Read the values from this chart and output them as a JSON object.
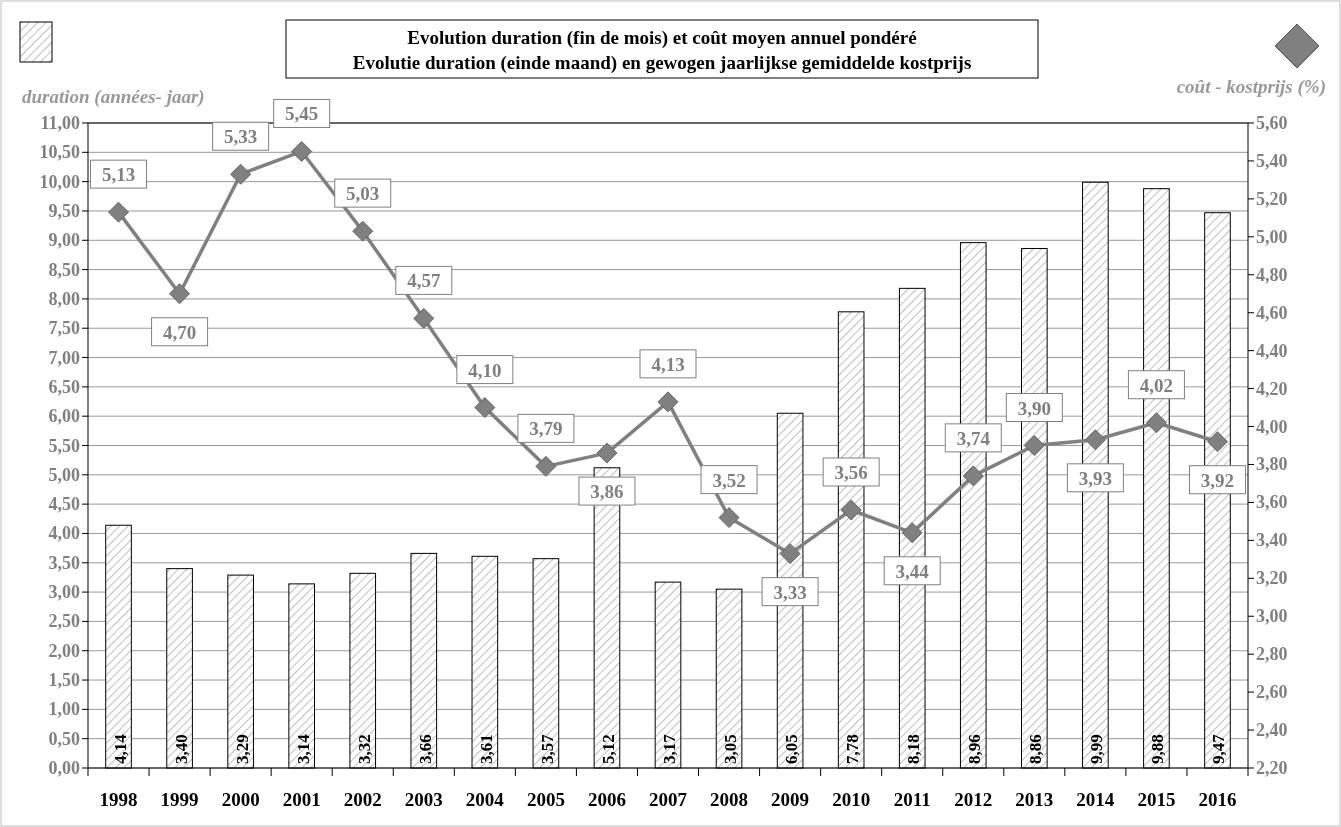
{
  "chart_data": {
    "type": "bar",
    "title": "Evolution duration (fin de mois) et coût moyen annuel pondéré\nEvolutie duration (einde maand) en gewogen jaarlijkse gemiddelde kostprijs",
    "ylabel": "duration (années- jaar)",
    "y2label": "coût - kostprijs (%)",
    "categories": [
      "1998",
      "1999",
      "2000",
      "2001",
      "2002",
      "2003",
      "2004",
      "2005",
      "2006",
      "2007",
      "2008",
      "2009",
      "2010",
      "2011",
      "2012",
      "2013",
      "2014",
      "2015",
      "2016"
    ],
    "series": [
      {
        "color": "#000000",
        "values": [
          4.14,
          3.4,
          3.29,
          3.14,
          3.32,
          3.66,
          3.61,
          3.57,
          5.12,
          3.17,
          3.05,
          6.05,
          7.78,
          8.18,
          8.96,
          8.86,
          9.99,
          9.88,
          9.47
        ],
        "value_labels": [
          "4,14",
          "3,40",
          "3,29",
          "3,14",
          "3,32",
          "3,66",
          "3,61",
          "3,57",
          "5,12",
          "3,17",
          "3,05",
          "6,05",
          "7,78",
          "8,18",
          "8,96",
          "8,86",
          "9,99",
          "9,88",
          "9,47"
        ]
      },
      {
        "type": "line",
        "axis": "y2",
        "color": "#808080",
        "marker": "diamond",
        "values": [
          5.13,
          4.7,
          5.33,
          5.45,
          5.03,
          4.57,
          4.1,
          3.79,
          3.86,
          4.13,
          3.52,
          3.33,
          3.56,
          3.44,
          3.74,
          3.9,
          3.93,
          4.02,
          3.92
        ],
        "value_labels": [
          "5,13",
          "4,70",
          "5,33",
          "5,45",
          "5,03",
          "4,57",
          "4,10",
          "3,79",
          "3,86",
          "4,13",
          "3,52",
          "3,33",
          "3,56",
          "3,44",
          "3,74",
          "3,90",
          "3,93",
          "4,02",
          "3,92"
        ]
      }
    ],
    "ylim": [
      0,
      11
    ],
    "yticks": [
      {
        "value": 0,
        "label": "0,00"
      },
      {
        "value": 0.5,
        "label": "0,50"
      },
      {
        "value": 1,
        "label": "1,00"
      },
      {
        "value": 1.5,
        "label": "1,50"
      },
      {
        "value": 2,
        "label": "2,00"
      },
      {
        "value": 2.5,
        "label": "2,50"
      },
      {
        "value": 3,
        "label": "3,00"
      },
      {
        "value": 3.5,
        "label": "3,50"
      },
      {
        "value": 4,
        "label": "4,00"
      },
      {
        "value": 4.5,
        "label": "4,50"
      },
      {
        "value": 5,
        "label": "5,00"
      },
      {
        "value": 5.5,
        "label": "5,50"
      },
      {
        "value": 6,
        "label": "6,00"
      },
      {
        "value": 6.5,
        "label": "6,50"
      },
      {
        "value": 7,
        "label": "7,00"
      },
      {
        "value": 7.5,
        "label": "7,50"
      },
      {
        "value": 8,
        "label": "8,00"
      },
      {
        "value": 8.5,
        "label": "8,50"
      },
      {
        "value": 9,
        "label": "9,00"
      },
      {
        "value": 9.5,
        "label": "9,50"
      },
      {
        "value": 10,
        "label": "10,00"
      },
      {
        "value": 10.5,
        "label": "10,50"
      },
      {
        "value": 11,
        "label": "11,00"
      }
    ],
    "y2lim": [
      2.2,
      5.6
    ],
    "y2ticks": [
      {
        "value": 2.2,
        "label": "2,20"
      },
      {
        "value": 2.4,
        "label": "2,40"
      },
      {
        "value": 2.6,
        "label": "2,60"
      },
      {
        "value": 2.8,
        "label": "2,80"
      },
      {
        "value": 3,
        "label": "3,00"
      },
      {
        "value": 3.2,
        "label": "3,20"
      },
      {
        "value": 3.4,
        "label": "3,40"
      },
      {
        "value": 3.6,
        "label": "3,60"
      },
      {
        "value": 3.8,
        "label": "3,80"
      },
      {
        "value": 4,
        "label": "4,00"
      },
      {
        "value": 4.2,
        "label": "4,20"
      },
      {
        "value": 4.4,
        "label": "4,40"
      },
      {
        "value": 4.6,
        "label": "4,60"
      },
      {
        "value": 4.8,
        "label": "4,80"
      },
      {
        "value": 5,
        "label": "5,00"
      },
      {
        "value": 5.2,
        "label": "5,20"
      },
      {
        "value": 5.4,
        "label": "5,40"
      },
      {
        "value": 5.6,
        "label": "5,60"
      }
    ],
    "grid": "y",
    "line_style": "solid"
  }
}
